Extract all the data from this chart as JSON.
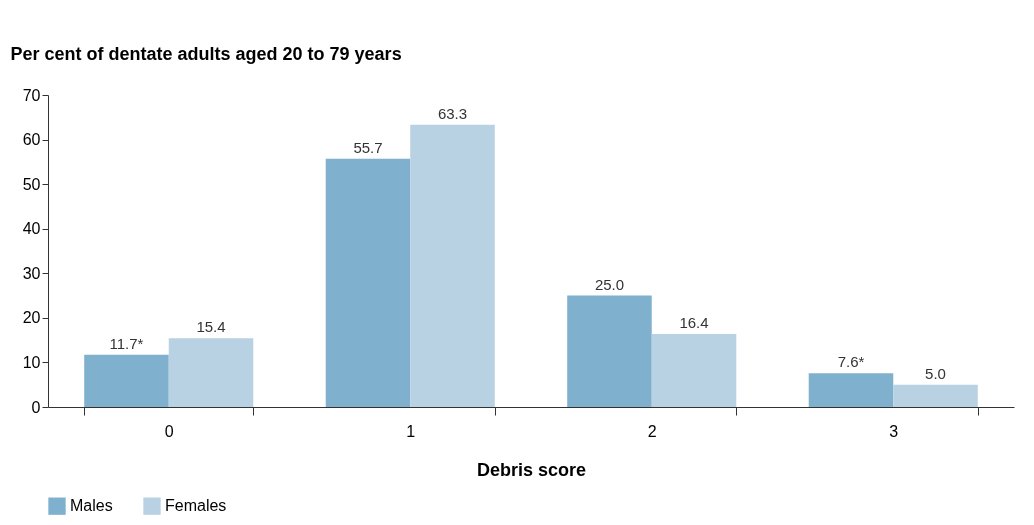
{
  "chart_data": {
    "type": "bar",
    "ylabel": "Per cent of dentate adults aged 20 to 79 years",
    "xlabel": "Debris score",
    "categories": [
      "0",
      "1",
      "2",
      "3"
    ],
    "series": [
      {
        "name": "Males",
        "color": "#7fb0cd",
        "values": [
          11.7,
          55.7,
          25.0,
          7.6
        ],
        "value_labels": [
          "11.7*",
          "55.7",
          "25.0",
          "7.6*"
        ]
      },
      {
        "name": "Females",
        "color": "#b8d1e3",
        "values": [
          15.4,
          63.3,
          16.4,
          5.0
        ],
        "value_labels": [
          "15.4",
          "63.3",
          "16.4",
          "5.0"
        ]
      }
    ],
    "ylim": [
      0,
      70
    ],
    "yticks": [
      0,
      10,
      20,
      30,
      40,
      50,
      60,
      70
    ],
    "grid": false,
    "legend": "bottom"
  }
}
